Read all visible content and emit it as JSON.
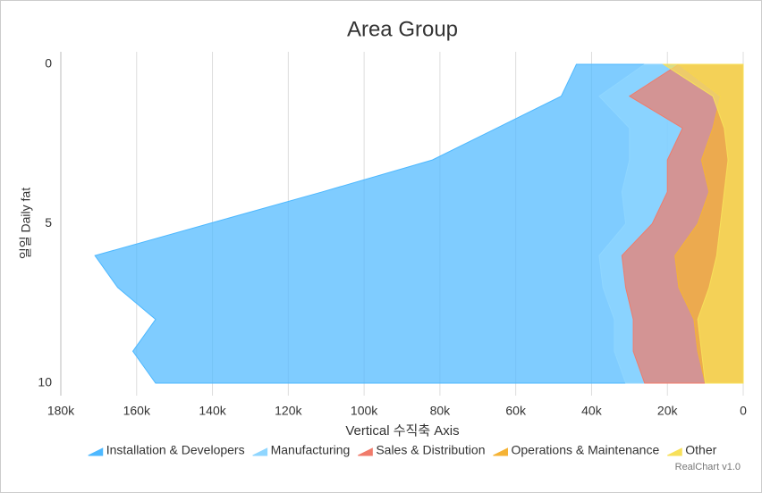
{
  "chart_data": {
    "type": "area",
    "title": "Area Group",
    "orientation": "inverted",
    "reversed": true,
    "grid": true,
    "legend": "bottom",
    "x_axis_label": "일일 Daily fat",
    "y_axis_label": "Vertical 수직축 Axis",
    "x": [
      0,
      1,
      2,
      3,
      4,
      5,
      6,
      7,
      8,
      9,
      10
    ],
    "xlim": [
      0,
      10
    ],
    "xticks": [
      0,
      5,
      10
    ],
    "ylim": [
      0,
      180000
    ],
    "yticks": [
      0,
      {
        "value": 20000,
        "label": "20k"
      },
      {
        "value": 40000,
        "label": "40k"
      },
      {
        "value": 60000,
        "label": "60k"
      },
      {
        "value": 80000,
        "label": "80k"
      },
      {
        "value": 100000,
        "label": "100k"
      },
      {
        "value": 120000,
        "label": "120k"
      },
      {
        "value": 140000,
        "label": "140k"
      },
      {
        "value": 160000,
        "label": "160k"
      },
      {
        "value": 180000,
        "label": "180k"
      }
    ],
    "series": [
      {
        "name": "Installation & Developers",
        "color": "#4db8ff",
        "values": [
          44000,
          48000,
          65000,
          82000,
          111000,
          141000,
          171000,
          165000,
          155000,
          161000,
          155000
        ]
      },
      {
        "name": "Manufacturing",
        "color": "#8fd6ff",
        "values": [
          26000,
          38000,
          30000,
          30000,
          32000,
          31000,
          38000,
          37000,
          34000,
          34000,
          31000
        ]
      },
      {
        "name": "Sales & Distribution",
        "color": "#f07b6b",
        "values": [
          17000,
          30000,
          16000,
          20000,
          20000,
          24000,
          32000,
          31000,
          29000,
          29000,
          26000
        ]
      },
      {
        "name": "Operations & Maintenance",
        "color": "#f5b335",
        "values": [
          17000,
          6000,
          8000,
          11000,
          9000,
          12000,
          18000,
          17000,
          13000,
          12000,
          10000
        ]
      },
      {
        "name": "Other",
        "color": "#f7e05a",
        "values": [
          21000,
          8000,
          5000,
          4000,
          5000,
          6000,
          7000,
          9000,
          12000,
          11000,
          10000
        ]
      }
    ],
    "credits": "RealChart v1.0"
  }
}
